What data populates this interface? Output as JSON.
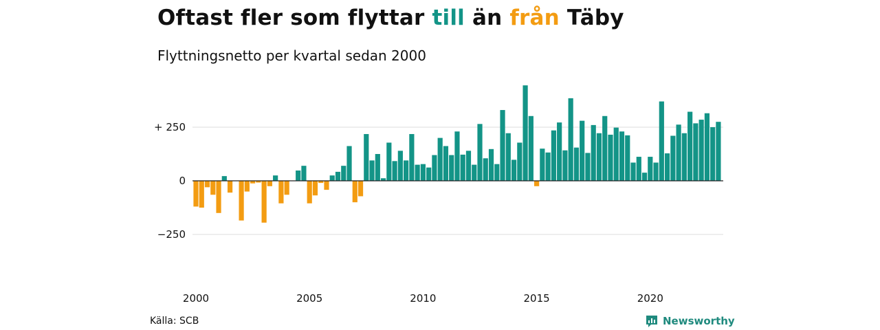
{
  "header": {
    "title_part1": "Oftast fler som flyttar ",
    "title_in": "till",
    "title_part2": " än ",
    "title_out": "från",
    "title_part3": " Täby",
    "subtitle": "Flyttningsnetto per kvartal sedan 2000"
  },
  "footer": {
    "source": "Källa: SCB",
    "logo_text": "Newsworthy"
  },
  "colors": {
    "positive": "#139487",
    "negative": "#f39c12",
    "gridline": "#dddddd",
    "baseline": "#222222"
  },
  "chart_data": {
    "type": "bar",
    "x_unit": "quarter",
    "start": "2000-Q1",
    "end": "2023-Q1",
    "x_tick_labels": [
      "2000",
      "2005",
      "2010",
      "2015",
      "2020"
    ],
    "y_tick_values": [
      250,
      0,
      -250
    ],
    "y_tick_labels": [
      "+ 250",
      "0",
      "−250"
    ],
    "ylim": [
      -320,
      450
    ],
    "grid": true,
    "values": [
      -120,
      -125,
      -30,
      -65,
      -150,
      22,
      -55,
      0,
      -185,
      -50,
      -12,
      -8,
      -195,
      -25,
      25,
      -105,
      -65,
      0,
      48,
      70,
      -105,
      -68,
      -10,
      -42,
      25,
      42,
      70,
      162,
      -100,
      -72,
      218,
      95,
      125,
      12,
      178,
      92,
      140,
      95,
      218,
      75,
      78,
      62,
      120,
      200,
      162,
      120,
      230,
      122,
      140,
      75,
      265,
      105,
      148,
      78,
      330,
      222,
      98,
      178,
      445,
      302,
      -25,
      150,
      132,
      235,
      272,
      142,
      385,
      155,
      280,
      130,
      260,
      222,
      302,
      215,
      248,
      230,
      212,
      85,
      112,
      38,
      112,
      85,
      370,
      128,
      210,
      262,
      222,
      322,
      268,
      285,
      315,
      250,
      275
    ]
  }
}
